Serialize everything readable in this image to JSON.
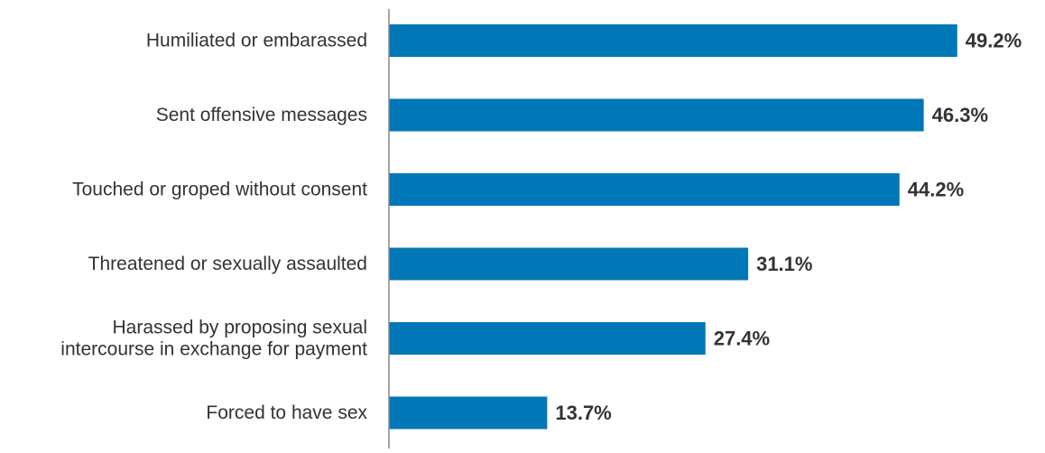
{
  "chart_data": {
    "type": "bar",
    "orientation": "horizontal",
    "categories": [
      "Humiliated or embarassed",
      "Sent offensive messages",
      "Touched or groped without consent",
      "Threatened or sexually assaulted",
      "Harassed by proposing sexual intercourse in exchange for payment",
      "Forced to have sex"
    ],
    "category_lines": [
      [
        "Humiliated or embarassed"
      ],
      [
        "Sent offensive messages"
      ],
      [
        "Touched or groped without consent"
      ],
      [
        "Threatened or sexually assaulted"
      ],
      [
        "Harassed by proposing sexual",
        "intercourse in exchange for payment"
      ],
      [
        "Forced to have sex"
      ]
    ],
    "values": [
      49.2,
      46.3,
      44.2,
      31.1,
      27.4,
      13.7
    ],
    "value_labels": [
      "49.2%",
      "46.3%",
      "44.2%",
      "31.1%",
      "27.4%",
      "13.7%"
    ],
    "title": "",
    "xlabel": "",
    "ylabel": "",
    "xlim": [
      0,
      50
    ],
    "grid": false,
    "legend": "none",
    "bar_color": "#0077b6",
    "axis_color": "#888888"
  }
}
